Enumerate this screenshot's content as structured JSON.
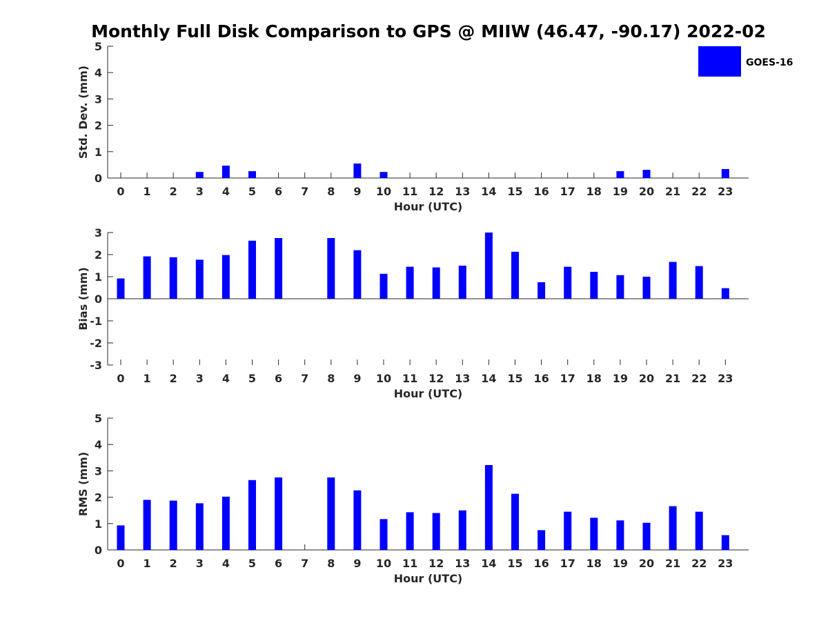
{
  "title": "Monthly Full Disk Comparison to GPS @ MIIW (46.47, -90.17) 2022-02",
  "legend": {
    "label": "GOES-16",
    "color": "#0000ff"
  },
  "chart_data": [
    {
      "type": "bar",
      "ylabel": "Std. Dev. (mm)",
      "xlabel": "Hour (UTC)",
      "ylim": [
        0,
        5
      ],
      "yticks": [
        "0",
        "1",
        "2",
        "3",
        "4",
        "5"
      ],
      "categories": [
        "0",
        "1",
        "2",
        "3",
        "4",
        "5",
        "6",
        "7",
        "8",
        "9",
        "10",
        "11",
        "12",
        "13",
        "14",
        "15",
        "16",
        "17",
        "18",
        "19",
        "20",
        "21",
        "22",
        "23"
      ],
      "values": [
        null,
        null,
        null,
        0.23,
        0.47,
        0.26,
        null,
        null,
        null,
        0.55,
        0.23,
        null,
        null,
        null,
        null,
        null,
        null,
        null,
        null,
        0.26,
        0.31,
        null,
        null,
        0.34
      ]
    },
    {
      "type": "bar",
      "ylabel": "Bias (mm)",
      "xlabel": "Hour (UTC)",
      "ylim": [
        -3,
        3
      ],
      "yticks": [
        "-3",
        "-2",
        "-1",
        "0",
        "1",
        "2",
        "3"
      ],
      "categories": [
        "0",
        "1",
        "2",
        "3",
        "4",
        "5",
        "6",
        "7",
        "8",
        "9",
        "10",
        "11",
        "12",
        "13",
        "14",
        "15",
        "16",
        "17",
        "18",
        "19",
        "20",
        "21",
        "22",
        "23"
      ],
      "values": [
        0.92,
        1.92,
        1.88,
        1.77,
        1.98,
        2.63,
        2.75,
        null,
        2.75,
        2.2,
        1.13,
        1.45,
        1.42,
        1.5,
        3.0,
        2.13,
        0.75,
        1.45,
        1.22,
        1.07,
        1.0,
        1.67,
        1.48,
        0.48
      ]
    },
    {
      "type": "bar",
      "ylabel": "RMS (mm)",
      "xlabel": "Hour (UTC)",
      "ylim": [
        0,
        5
      ],
      "yticks": [
        "0",
        "1",
        "2",
        "3",
        "4",
        "5"
      ],
      "categories": [
        "0",
        "1",
        "2",
        "3",
        "4",
        "5",
        "6",
        "7",
        "8",
        "9",
        "10",
        "11",
        "12",
        "13",
        "14",
        "15",
        "16",
        "17",
        "18",
        "19",
        "20",
        "21",
        "22",
        "23"
      ],
      "values": [
        0.93,
        1.9,
        1.87,
        1.77,
        2.02,
        2.65,
        2.75,
        null,
        2.75,
        2.26,
        1.17,
        1.43,
        1.4,
        1.5,
        3.22,
        2.13,
        0.75,
        1.45,
        1.22,
        1.12,
        1.03,
        1.66,
        1.45,
        0.56
      ]
    }
  ]
}
